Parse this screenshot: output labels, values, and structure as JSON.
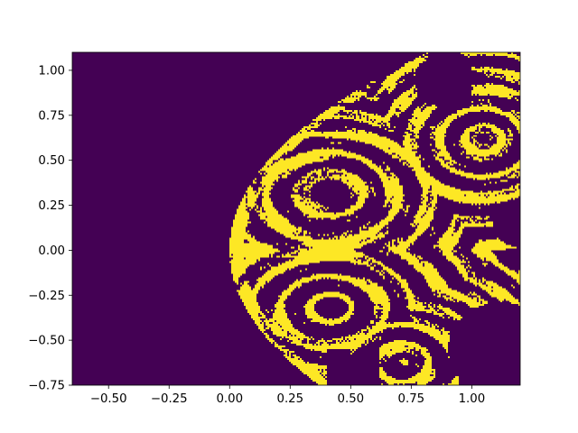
{
  "chart_data": {
    "type": "heatmap",
    "title": "",
    "xlabel": "",
    "ylabel": "",
    "xlim": [
      -0.65,
      1.2
    ],
    "ylim": [
      -0.75,
      1.1
    ],
    "grid": false,
    "legend": "none",
    "colormap": "viridis",
    "colors": {
      "low": "#440154",
      "high": "#fde725"
    },
    "values_description_levels": [
      0,
      1
    ],
    "x_ticks": [
      {
        "value": -0.5,
        "label": "−0.50"
      },
      {
        "value": -0.25,
        "label": "−0.25"
      },
      {
        "value": 0.0,
        "label": "0.00"
      },
      {
        "value": 0.25,
        "label": "0.25"
      },
      {
        "value": 0.5,
        "label": "0.50"
      },
      {
        "value": 0.75,
        "label": "0.75"
      },
      {
        "value": 1.0,
        "label": "1.00"
      }
    ],
    "y_ticks": [
      {
        "value": -0.75,
        "label": "−0.75"
      },
      {
        "value": -0.5,
        "label": "−0.50"
      },
      {
        "value": -0.25,
        "label": "−0.25"
      },
      {
        "value": 0.0,
        "label": "0.00"
      },
      {
        "value": 0.25,
        "label": "0.25"
      },
      {
        "value": 0.5,
        "label": "0.50"
      },
      {
        "value": 0.75,
        "label": "0.75"
      },
      {
        "value": 1.0,
        "label": "1.00"
      }
    ]
  }
}
